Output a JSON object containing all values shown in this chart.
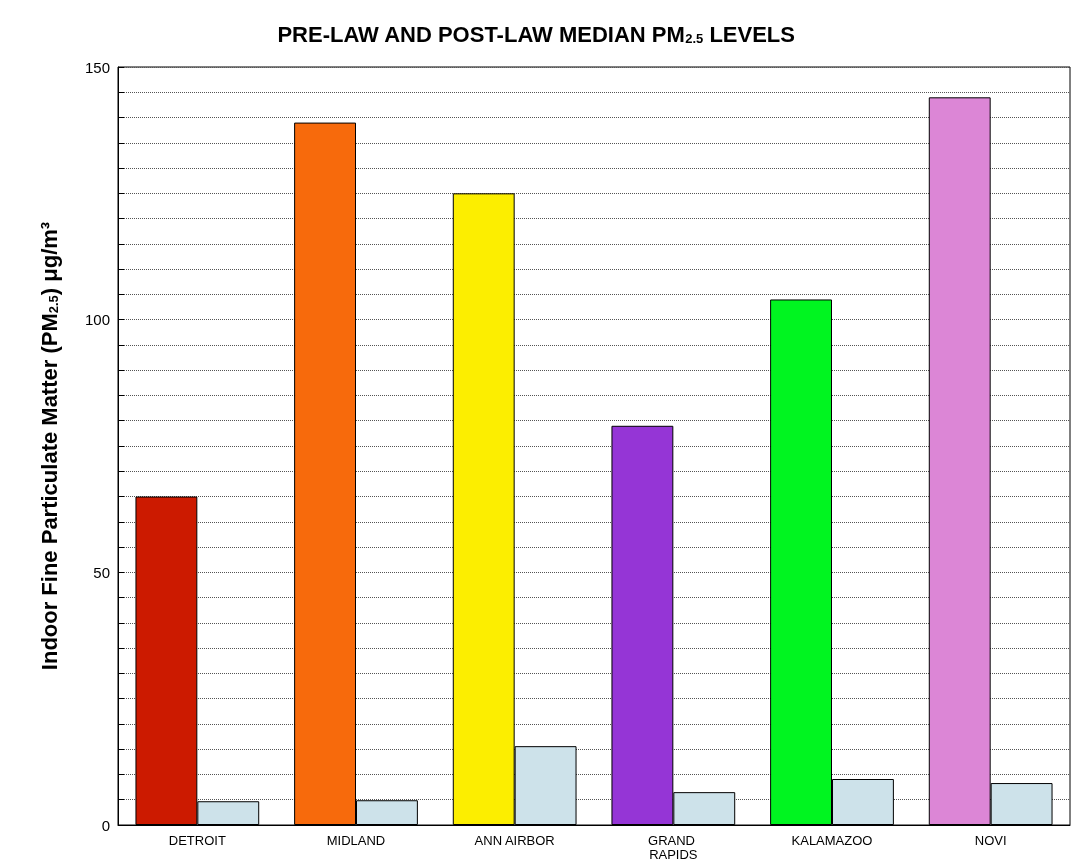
{
  "chart_data": {
    "type": "bar",
    "title": "PRE-LAW AND POST-LAW MEDIAN PM$_{2.5}$ LEVELS",
    "ylabel": "Indoor Fine Particulate Matter (PM$_{2.5}$) μg/m³",
    "categories": [
      "DETROIT",
      "MIDLAND",
      "ANN AIRBOR",
      "GRAND RAPIDS",
      "KALAMAZOO",
      "NOVI"
    ],
    "series": [
      {
        "colors": [
          "#cc1a00",
          "#f76a0c",
          "#fcee00",
          "#9535d6",
          "#00f520",
          "#dc86d6"
        ],
        "values": [
          65,
          139,
          125,
          79,
          104,
          144
        ]
      },
      {
        "color": "#cde2ea",
        "values": [
          4.7,
          4.9,
          15.6,
          6.5,
          9.1,
          8.3
        ]
      }
    ],
    "ylim": [
      0,
      150
    ],
    "yticks": [
      0,
      {
        "value": 5,
        "label": null
      },
      {
        "value": 10,
        "label": null
      },
      {
        "value": 15,
        "label": null
      },
      {
        "value": 20,
        "label": null
      },
      {
        "value": 25,
        "label": null
      },
      {
        "value": 30,
        "label": null
      },
      {
        "value": 35,
        "label": null
      },
      {
        "value": 40,
        "label": null
      },
      {
        "value": 45,
        "label": null
      },
      50,
      {
        "value": 55,
        "label": null
      },
      {
        "value": 60,
        "label": null
      },
      {
        "value": 65,
        "label": null
      },
      {
        "value": 70,
        "label": null
      },
      {
        "value": 75,
        "label": null
      },
      {
        "value": 80,
        "label": null
      },
      {
        "value": 85,
        "label": null
      },
      {
        "value": 90,
        "label": null
      },
      {
        "value": 95,
        "label": null
      },
      100,
      {
        "value": 105,
        "label": null
      },
      {
        "value": 110,
        "label": null
      },
      {
        "value": 115,
        "label": null
      },
      {
        "value": 120,
        "label": null
      },
      {
        "value": 125,
        "label": null
      },
      {
        "value": 130,
        "label": null
      },
      {
        "value": 135,
        "label": null
      },
      {
        "value": 140,
        "label": null
      },
      {
        "value": 145,
        "label": null
      },
      150
    ],
    "grid": "y"
  }
}
